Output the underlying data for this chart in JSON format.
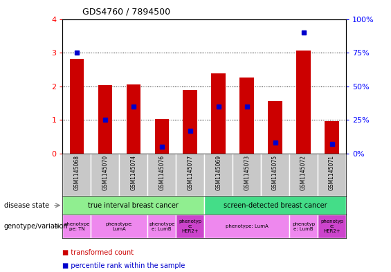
{
  "title": "GDS4760 / 7894500",
  "samples": [
    "GSM1145068",
    "GSM1145070",
    "GSM1145074",
    "GSM1145076",
    "GSM1145077",
    "GSM1145069",
    "GSM1145073",
    "GSM1145075",
    "GSM1145072",
    "GSM1145071"
  ],
  "transformed_count": [
    2.82,
    2.03,
    2.05,
    1.02,
    1.9,
    2.38,
    2.27,
    1.57,
    3.07,
    0.97
  ],
  "percentile_rank": [
    0.75,
    0.25,
    0.35,
    0.05,
    0.17,
    0.35,
    0.35,
    0.08,
    0.9,
    0.07
  ],
  "ylim": [
    0,
    4
  ],
  "bar_color": "#cc0000",
  "dot_color": "#0000cc",
  "plot_bg_color": "#ffffff",
  "sample_row_bg": "#c8c8c8",
  "disease_groups": [
    {
      "label": "true interval breast cancer",
      "start": 0,
      "end": 5,
      "color": "#90ee90"
    },
    {
      "label": "screen-detected breast cancer",
      "start": 5,
      "end": 10,
      "color": "#44dd88"
    }
  ],
  "genotype_groups": [
    {
      "label": "phenotype\npe: TN",
      "start": 0,
      "end": 1,
      "color": "#ee88ee"
    },
    {
      "label": "phenotype:\nLumA",
      "start": 1,
      "end": 3,
      "color": "#ee88ee"
    },
    {
      "label": "phenotype\ne: LumB",
      "start": 3,
      "end": 4,
      "color": "#ee88ee"
    },
    {
      "label": "phenotyp\ne:\nHER2+",
      "start": 4,
      "end": 5,
      "color": "#cc44cc"
    },
    {
      "label": "phenotype: LumA",
      "start": 5,
      "end": 8,
      "color": "#ee88ee"
    },
    {
      "label": "phenotyp\ne: LumB",
      "start": 8,
      "end": 9,
      "color": "#ee88ee"
    },
    {
      "label": "phenotyp\ne:\nHER2+",
      "start": 9,
      "end": 10,
      "color": "#cc44cc"
    }
  ],
  "left_labels": [
    "disease state",
    "genotype/variation"
  ],
  "legend": [
    {
      "label": "transformed count",
      "color": "#cc0000"
    },
    {
      "label": "percentile rank within the sample",
      "color": "#0000cc"
    }
  ],
  "right_yticks": [
    0,
    25,
    50,
    75,
    100
  ],
  "right_yticklabels": [
    "0%",
    "25%",
    "50%",
    "75%",
    "100%"
  ]
}
